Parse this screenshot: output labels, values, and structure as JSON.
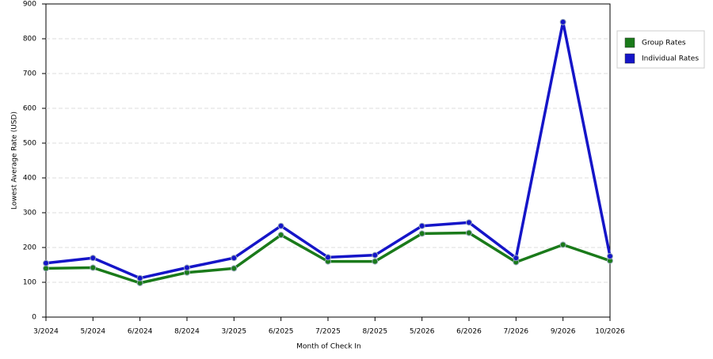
{
  "chart_data": {
    "type": "line",
    "x_label": "Month of Check In",
    "y_label": "Lowest Average Rate (USD)",
    "categories": [
      "3/2024",
      "5/2024",
      "6/2024",
      "8/2024",
      "3/2025",
      "6/2025",
      "7/2025",
      "8/2025",
      "5/2026",
      "6/2026",
      "7/2026",
      "9/2026",
      "10/2026"
    ],
    "series": [
      {
        "name": "Group Rates",
        "color": "#1a7a1a",
        "values": [
          140,
          142,
          98,
          128,
          140,
          236,
          160,
          160,
          240,
          242,
          158,
          208,
          162
        ]
      },
      {
        "name": "Individual Rates",
        "color": "#1515c8",
        "values": [
          155,
          170,
          112,
          142,
          170,
          262,
          172,
          178,
          262,
          272,
          170,
          848,
          175
        ]
      }
    ],
    "ylim": [
      0,
      900
    ],
    "yticks": [
      0,
      100,
      200,
      300,
      400,
      500,
      600,
      700,
      800,
      900
    ],
    "grid": true,
    "legend": "right"
  }
}
